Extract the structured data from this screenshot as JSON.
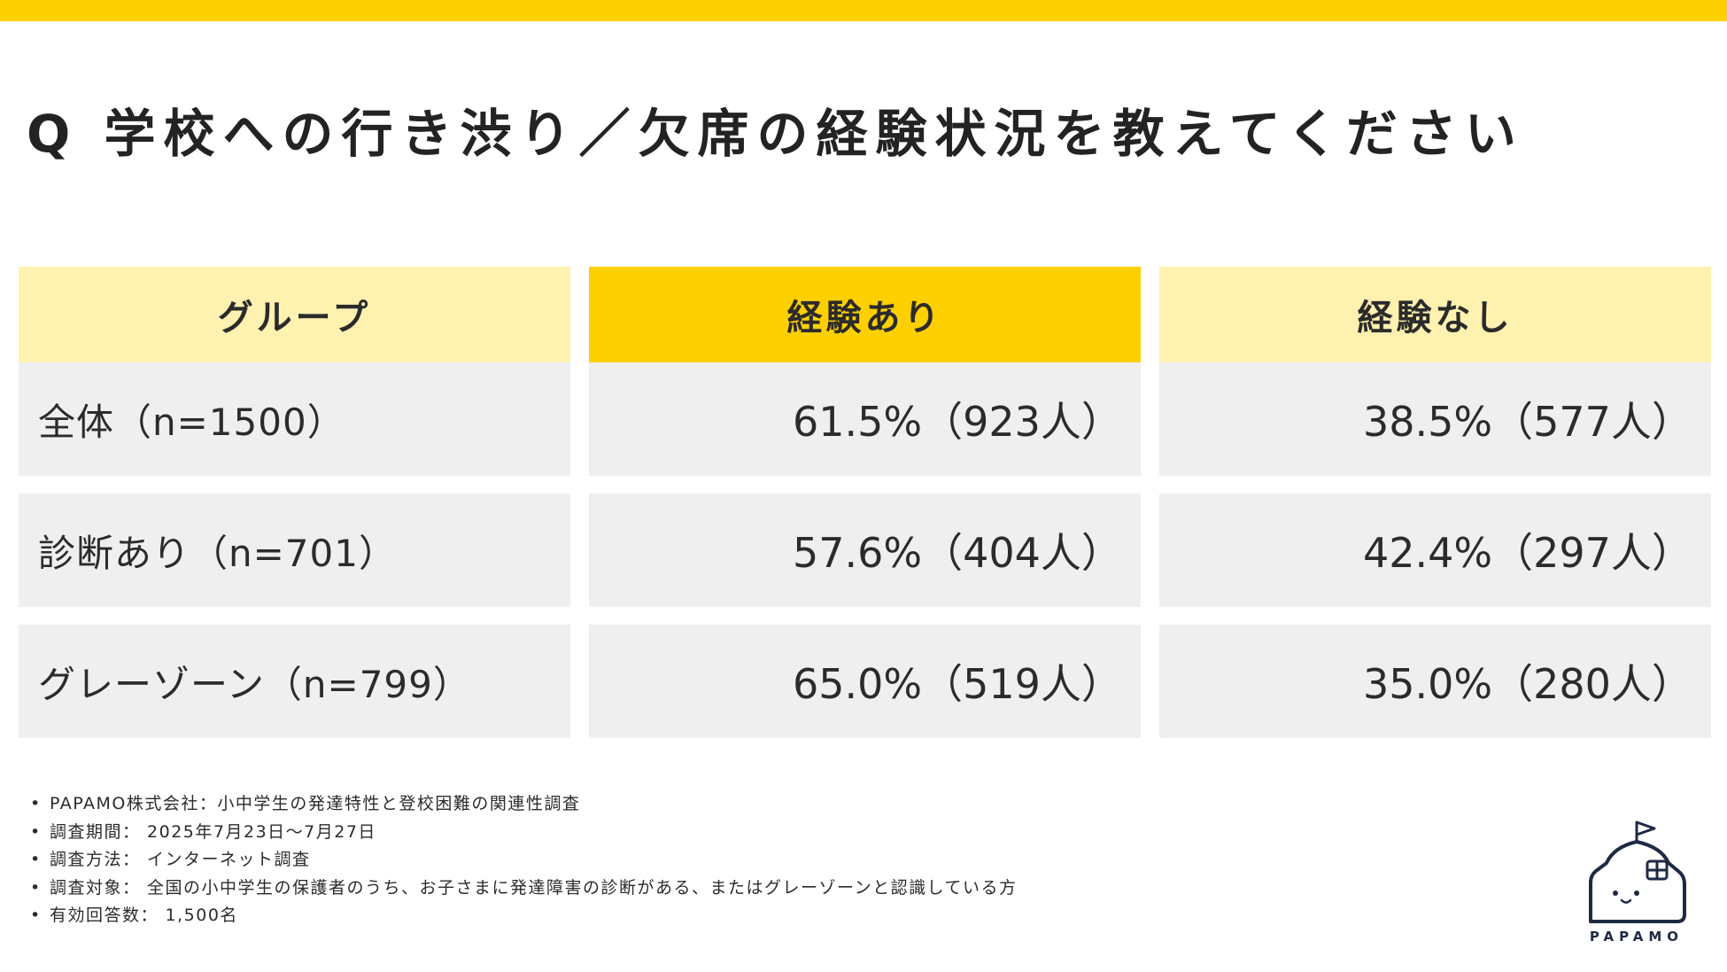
{
  "title": "Q 学校への行き渋り／欠席の経験状況を教えてください",
  "chart_data": {
    "type": "table",
    "columns": [
      "グループ",
      "経験あり",
      "経験なし"
    ],
    "rows": [
      {
        "group": "全体（n=1500）",
        "experienced": "61.5%（923人）",
        "not_experienced": "38.5%（577人）"
      },
      {
        "group": "診断あり（n=701）",
        "experienced": "57.6%（404人）",
        "not_experienced": "42.4%（297人）"
      },
      {
        "group": "グレーゾーン（n=799）",
        "experienced": "65.0%（519人）",
        "not_experienced": "35.0%（280人）"
      }
    ]
  },
  "notes": [
    "PAPAMO株式会社：小中学生の発達特性と登校困難の関連性調査",
    "調査期間： 2025年7月23日～7月27日",
    "調査方法： インターネット調査",
    "調査対象： 全国の小中学生の保護者のうち、お子さまに発達障害の診断がある、またはグレーゾーンと認識している方",
    "有効回答数： 1,500名"
  ],
  "logo": {
    "text": "PAPAMO",
    "icon": "house-face-logo-icon"
  },
  "colors": {
    "accent": "#FFD000",
    "header_light": "#FFF1B0",
    "row_bg": "#EFEFEF",
    "navy": "#1F2A44"
  }
}
